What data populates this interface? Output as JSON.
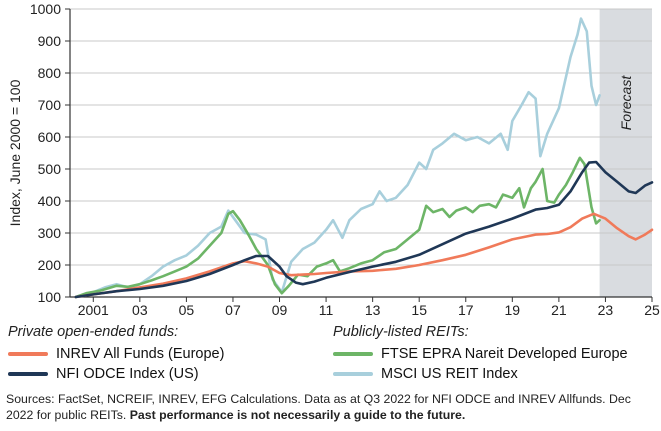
{
  "chart_data": {
    "type": "line",
    "ylabel": "Index, June 2000 = 100",
    "ylim": [
      100,
      1000
    ],
    "yticks": [
      100,
      200,
      300,
      400,
      500,
      600,
      700,
      800,
      900,
      1000
    ],
    "xlim": [
      2000.0,
      2025.0
    ],
    "xticks": [
      {
        "x": 2001,
        "label": "2001"
      },
      {
        "x": 2003,
        "label": "03"
      },
      {
        "x": 2005,
        "label": "05"
      },
      {
        "x": 2007,
        "label": "07"
      },
      {
        "x": 2009,
        "label": "09"
      },
      {
        "x": 2011,
        "label": "11"
      },
      {
        "x": 2013,
        "label": "13"
      },
      {
        "x": 2015,
        "label": "15"
      },
      {
        "x": 2017,
        "label": "17"
      },
      {
        "x": 2019,
        "label": "19"
      },
      {
        "x": 2021,
        "label": "21"
      },
      {
        "x": 2023,
        "label": "23"
      },
      {
        "x": 2025,
        "label": "25"
      }
    ],
    "forecast": {
      "label": "Forecast",
      "start": 2022.75,
      "end": 2025.0
    },
    "series": [
      {
        "name": "INREV All Funds (Europe)",
        "color": "#f07a5a",
        "points": [
          [
            2000.25,
            100
          ],
          [
            2001,
            108
          ],
          [
            2002,
            118
          ],
          [
            2003,
            130
          ],
          [
            2004,
            142
          ],
          [
            2005,
            158
          ],
          [
            2006,
            180
          ],
          [
            2007,
            205
          ],
          [
            2007.5,
            212
          ],
          [
            2008,
            205
          ],
          [
            2008.5,
            195
          ],
          [
            2009,
            175
          ],
          [
            2009.5,
            168
          ],
          [
            2010,
            170
          ],
          [
            2010.5,
            172
          ],
          [
            2011,
            175
          ],
          [
            2012,
            180
          ],
          [
            2013,
            182
          ],
          [
            2014,
            188
          ],
          [
            2015,
            200
          ],
          [
            2016,
            215
          ],
          [
            2017,
            232
          ],
          [
            2018,
            255
          ],
          [
            2019,
            280
          ],
          [
            2020,
            295
          ],
          [
            2020.5,
            297
          ],
          [
            2021,
            302
          ],
          [
            2021.5,
            318
          ],
          [
            2022,
            345
          ],
          [
            2022.5,
            360
          ],
          [
            2023,
            345
          ],
          [
            2023.5,
            315
          ],
          [
            2024,
            290
          ],
          [
            2024.3,
            280
          ],
          [
            2024.7,
            295
          ],
          [
            2025,
            310
          ]
        ]
      },
      {
        "name": "NFI ODCE Index (US)",
        "color": "#1f3756",
        "points": [
          [
            2000.25,
            100
          ],
          [
            2001,
            108
          ],
          [
            2002,
            118
          ],
          [
            2003,
            125
          ],
          [
            2004,
            135
          ],
          [
            2005,
            150
          ],
          [
            2006,
            172
          ],
          [
            2007,
            200
          ],
          [
            2007.5,
            215
          ],
          [
            2008,
            228
          ],
          [
            2008.5,
            228
          ],
          [
            2009,
            195
          ],
          [
            2009.3,
            165
          ],
          [
            2009.7,
            145
          ],
          [
            2010,
            140
          ],
          [
            2010.5,
            148
          ],
          [
            2011,
            160
          ],
          [
            2012,
            178
          ],
          [
            2013,
            195
          ],
          [
            2014,
            210
          ],
          [
            2015,
            232
          ],
          [
            2016,
            265
          ],
          [
            2017,
            298
          ],
          [
            2018,
            320
          ],
          [
            2019,
            345
          ],
          [
            2020,
            373
          ],
          [
            2020.5,
            378
          ],
          [
            2021,
            388
          ],
          [
            2021.5,
            430
          ],
          [
            2022,
            490
          ],
          [
            2022.3,
            520
          ],
          [
            2022.6,
            522
          ],
          [
            2023,
            490
          ],
          [
            2023.5,
            460
          ],
          [
            2024,
            430
          ],
          [
            2024.3,
            425
          ],
          [
            2024.7,
            448
          ],
          [
            2025,
            458
          ]
        ]
      },
      {
        "name": "FTSE EPRA Nareit Developed Europe",
        "color": "#6db567",
        "points": [
          [
            2000.25,
            100
          ],
          [
            2000.7,
            112
          ],
          [
            2001.3,
            120
          ],
          [
            2002,
            135
          ],
          [
            2002.5,
            132
          ],
          [
            2003,
            140
          ],
          [
            2003.5,
            152
          ],
          [
            2004,
            165
          ],
          [
            2004.5,
            180
          ],
          [
            2005,
            195
          ],
          [
            2005.5,
            220
          ],
          [
            2006,
            260
          ],
          [
            2006.5,
            300
          ],
          [
            2006.8,
            360
          ],
          [
            2007,
            368
          ],
          [
            2007.3,
            340
          ],
          [
            2007.7,
            290
          ],
          [
            2008,
            250
          ],
          [
            2008.5,
            200
          ],
          [
            2008.8,
            140
          ],
          [
            2009.1,
            112
          ],
          [
            2009.4,
            135
          ],
          [
            2009.8,
            170
          ],
          [
            2010.2,
            165
          ],
          [
            2010.6,
            195
          ],
          [
            2011,
            205
          ],
          [
            2011.3,
            215
          ],
          [
            2011.6,
            180
          ],
          [
            2012,
            190
          ],
          [
            2012.5,
            205
          ],
          [
            2013,
            215
          ],
          [
            2013.5,
            240
          ],
          [
            2014,
            250
          ],
          [
            2014.5,
            280
          ],
          [
            2015,
            310
          ],
          [
            2015.3,
            385
          ],
          [
            2015.6,
            365
          ],
          [
            2016,
            375
          ],
          [
            2016.3,
            350
          ],
          [
            2016.6,
            370
          ],
          [
            2017,
            380
          ],
          [
            2017.3,
            365
          ],
          [
            2017.6,
            385
          ],
          [
            2018,
            390
          ],
          [
            2018.3,
            380
          ],
          [
            2018.6,
            420
          ],
          [
            2019,
            410
          ],
          [
            2019.3,
            440
          ],
          [
            2019.5,
            380
          ],
          [
            2019.8,
            440
          ],
          [
            2020,
            460
          ],
          [
            2020.3,
            500
          ],
          [
            2020.5,
            400
          ],
          [
            2020.8,
            395
          ],
          [
            2021,
            420
          ],
          [
            2021.3,
            450
          ],
          [
            2021.6,
            490
          ],
          [
            2021.9,
            535
          ],
          [
            2022.1,
            515
          ],
          [
            2022.4,
            380
          ],
          [
            2022.6,
            330
          ],
          [
            2022.75,
            340
          ]
        ]
      },
      {
        "name": "MSCI US REIT Index",
        "color": "#a8cfdc",
        "points": [
          [
            2000.25,
            100
          ],
          [
            2000.7,
            110
          ],
          [
            2001,
            115
          ],
          [
            2001.5,
            130
          ],
          [
            2002,
            140
          ],
          [
            2002.5,
            130
          ],
          [
            2003,
            140
          ],
          [
            2003.5,
            165
          ],
          [
            2004,
            195
          ],
          [
            2004.5,
            215
          ],
          [
            2005,
            230
          ],
          [
            2005.5,
            260
          ],
          [
            2006,
            300
          ],
          [
            2006.5,
            320
          ],
          [
            2006.8,
            370
          ],
          [
            2007.1,
            340
          ],
          [
            2007.5,
            300
          ],
          [
            2008,
            295
          ],
          [
            2008.4,
            280
          ],
          [
            2008.7,
            155
          ],
          [
            2009.1,
            115
          ],
          [
            2009.5,
            210
          ],
          [
            2010,
            250
          ],
          [
            2010.5,
            270
          ],
          [
            2011,
            310
          ],
          [
            2011.3,
            340
          ],
          [
            2011.7,
            285
          ],
          [
            2012,
            340
          ],
          [
            2012.5,
            375
          ],
          [
            2013,
            390
          ],
          [
            2013.3,
            430
          ],
          [
            2013.6,
            400
          ],
          [
            2014,
            410
          ],
          [
            2014.5,
            450
          ],
          [
            2015,
            520
          ],
          [
            2015.3,
            500
          ],
          [
            2015.6,
            560
          ],
          [
            2016,
            580
          ],
          [
            2016.5,
            610
          ],
          [
            2017,
            590
          ],
          [
            2017.5,
            600
          ],
          [
            2018,
            580
          ],
          [
            2018.5,
            610
          ],
          [
            2018.8,
            560
          ],
          [
            2019,
            650
          ],
          [
            2019.4,
            700
          ],
          [
            2019.7,
            740
          ],
          [
            2020,
            720
          ],
          [
            2020.2,
            540
          ],
          [
            2020.5,
            610
          ],
          [
            2021,
            690
          ],
          [
            2021.5,
            850
          ],
          [
            2021.8,
            920
          ],
          [
            2021.95,
            970
          ],
          [
            2022.2,
            930
          ],
          [
            2022.4,
            760
          ],
          [
            2022.6,
            700
          ],
          [
            2022.75,
            730
          ]
        ]
      }
    ]
  },
  "legend": {
    "private_title": "Private open-ended funds:",
    "public_title": "Publicly-listed REITs:",
    "items": {
      "inrev": "INREV All Funds (Europe)",
      "nfi": "NFI ODCE Index (US)",
      "ftse": "FTSE EPRA Nareit Developed Europe",
      "msci": "MSCI US REIT Index"
    }
  },
  "sources": {
    "text": "Sources: FactSet, NCREIF, INREV, EFG Calculations. Data as at Q3 2022 for NFI ODCE and INREV Allfunds. Dec 2022 for public REITs.",
    "bold": "Past performance is not necessarily a guide to the future."
  }
}
